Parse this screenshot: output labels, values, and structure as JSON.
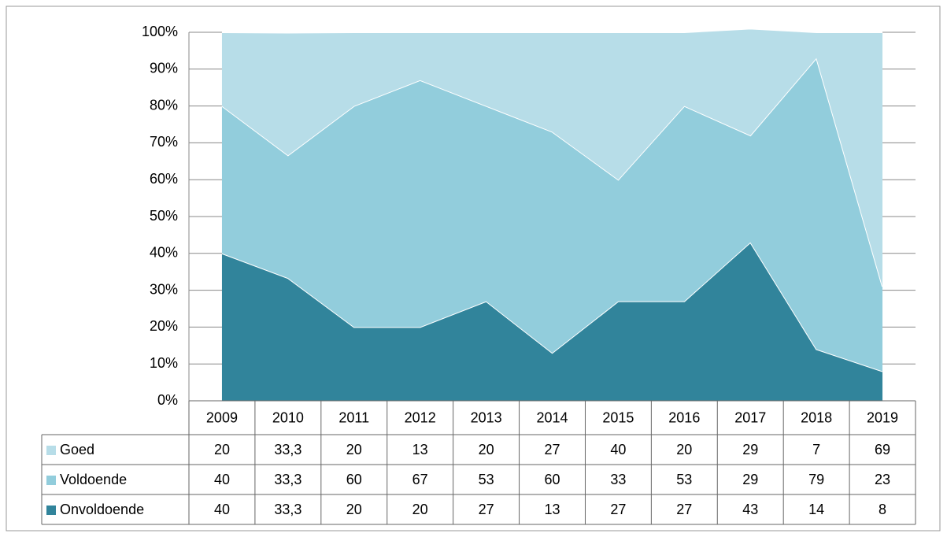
{
  "chart_data": {
    "type": "area",
    "stacked": true,
    "categories": [
      "2009",
      "2010",
      "2011",
      "2012",
      "2013",
      "2014",
      "2015",
      "2016",
      "2017",
      "2018",
      "2019"
    ],
    "series": [
      {
        "name": "Goed",
        "color": "#b7dde8",
        "values": [
          20,
          33.3,
          20,
          13,
          20,
          27,
          40,
          20,
          29,
          7,
          69
        ],
        "value_labels": [
          "20",
          "33,3",
          "20",
          "13",
          "20",
          "27",
          "40",
          "20",
          "29",
          "7",
          "69"
        ]
      },
      {
        "name": "Voldoende",
        "color": "#92cddc",
        "values": [
          40,
          33.3,
          60,
          67,
          53,
          60,
          33,
          53,
          29,
          79,
          23
        ],
        "value_labels": [
          "40",
          "33,3",
          "60",
          "67",
          "53",
          "60",
          "33",
          "53",
          "29",
          "79",
          "23"
        ]
      },
      {
        "name": "Onvoldoende",
        "color": "#31849b",
        "values": [
          40,
          33.3,
          20,
          20,
          27,
          13,
          27,
          27,
          43,
          14,
          8
        ],
        "value_labels": [
          "40",
          "33,3",
          "20",
          "20",
          "27",
          "13",
          "27",
          "27",
          "43",
          "14",
          "8"
        ]
      }
    ],
    "ylim": [
      0,
      100
    ],
    "yticks": [
      {
        "value": 0,
        "label": "0%"
      },
      {
        "value": 10,
        "label": "10%"
      },
      {
        "value": 20,
        "label": "20%"
      },
      {
        "value": 30,
        "label": "30%"
      },
      {
        "value": 40,
        "label": "40%"
      },
      {
        "value": 50,
        "label": "50%"
      },
      {
        "value": 60,
        "label": "60%"
      },
      {
        "value": 70,
        "label": "70%"
      },
      {
        "value": 80,
        "label": "80%"
      },
      {
        "value": 90,
        "label": "90%"
      },
      {
        "value": 100,
        "label": "100%"
      }
    ],
    "grid": true
  }
}
